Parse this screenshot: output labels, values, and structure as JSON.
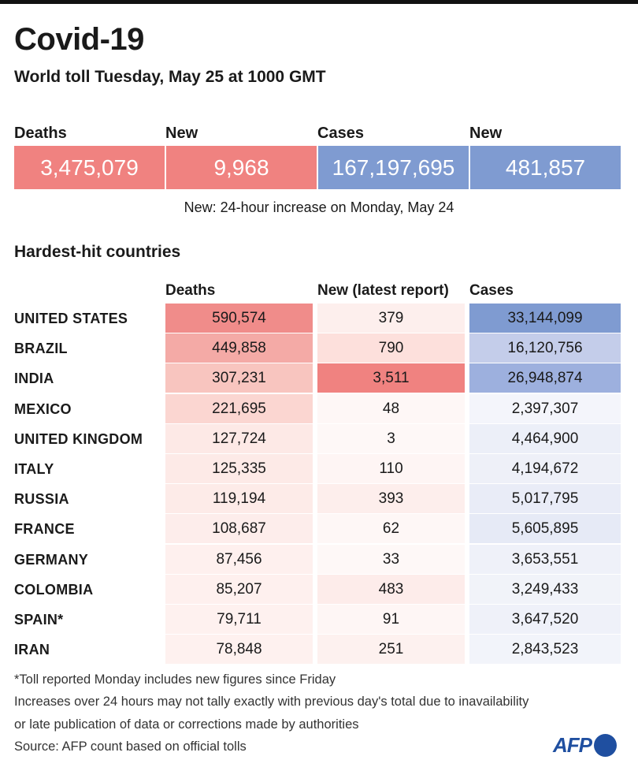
{
  "title": "Covid-19",
  "subtitle": "World toll Tuesday, May 25 at 1000 GMT",
  "kpis": [
    {
      "label": "Deaths",
      "value": "3,475,079",
      "color": "#f08280"
    },
    {
      "label": "New",
      "value": "9,968",
      "color": "#f08280"
    },
    {
      "label": "Cases",
      "value": "167,197,695",
      "color": "#7f9bd1"
    },
    {
      "label": "New",
      "value": "481,857",
      "color": "#7f9bd1"
    }
  ],
  "kpi_note": "New: 24-hour increase on Monday, May 24",
  "section_title": "Hardest-hit countries",
  "chart_data": {
    "type": "table",
    "columns": [
      "Deaths",
      "New (latest report)",
      "Cases"
    ],
    "rows": [
      {
        "country": "UNITED STATES",
        "deaths": "590,574",
        "new": "379",
        "cases": "33,144,099",
        "c": [
          "#f08c8a",
          "#fdefed",
          "#7f9bd1"
        ]
      },
      {
        "country": "BRAZIL",
        "deaths": "449,858",
        "new": "790",
        "cases": "16,120,756",
        "c": [
          "#f4aaa6",
          "#fde0dc",
          "#c4cdea"
        ]
      },
      {
        "country": "INDIA",
        "deaths": "307,231",
        "new": "3,511",
        "cases": "26,948,874",
        "c": [
          "#f8c5bf",
          "#f08280",
          "#9db0de"
        ]
      },
      {
        "country": "MEXICO",
        "deaths": "221,695",
        "new": "48",
        "cases": "2,397,307",
        "c": [
          "#fbd6d1",
          "#fef7f6",
          "#f4f5fb"
        ]
      },
      {
        "country": "UNITED KINGDOM",
        "deaths": "127,724",
        "new": "3",
        "cases": "4,464,900",
        "c": [
          "#fde9e6",
          "#fef8f7",
          "#eceff8"
        ]
      },
      {
        "country": "ITALY",
        "deaths": "125,335",
        "new": "110",
        "cases": "4,194,672",
        "c": [
          "#fdeae7",
          "#fef5f4",
          "#eef0f8"
        ]
      },
      {
        "country": "RUSSIA",
        "deaths": "119,194",
        "new": "393",
        "cases": "5,017,795",
        "c": [
          "#fdebe8",
          "#fdeeec",
          "#e9ecf7"
        ]
      },
      {
        "country": "FRANCE",
        "deaths": "108,687",
        "new": "62",
        "cases": "5,605,895",
        "c": [
          "#fdedeb",
          "#fef7f6",
          "#e6eaf6"
        ]
      },
      {
        "country": "GERMANY",
        "deaths": "87,456",
        "new": "33",
        "cases": "3,653,551",
        "c": [
          "#fef0ee",
          "#fef8f7",
          "#eff1f9"
        ]
      },
      {
        "country": "COLOMBIA",
        "deaths": "85,207",
        "new": "483",
        "cases": "3,249,433",
        "c": [
          "#fef0ee",
          "#fdecea",
          "#f1f3f9"
        ]
      },
      {
        "country": "SPAIN*",
        "deaths": "79,711",
        "new": "91",
        "cases": "3,647,520",
        "c": [
          "#fef1ef",
          "#fef6f5",
          "#eff1f9"
        ]
      },
      {
        "country": "IRAN",
        "deaths": "78,848",
        "new": "251",
        "cases": "2,843,523",
        "c": [
          "#fef1ef",
          "#fdf1ef",
          "#f2f4fa"
        ]
      }
    ]
  },
  "footnotes": [
    "*Toll reported Monday includes new figures since Friday",
    "Increases over 24 hours may not tally exactly with previous day's total due to inavailability",
    "or late publication of data or corrections made by authorities",
    "Source: AFP count based on official tolls"
  ],
  "logo": "AFP"
}
